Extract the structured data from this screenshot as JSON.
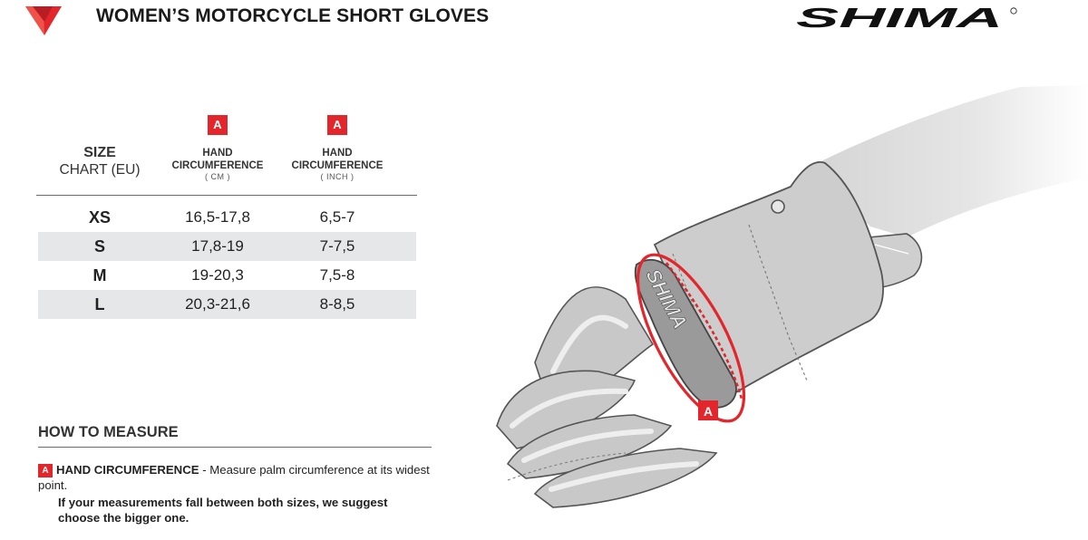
{
  "header": {
    "title": "WOMEN’S MOTORCYCLE SHORT GLOVES",
    "brand": "SHIMA",
    "brand_accent": "#e3262b"
  },
  "size_chart": {
    "size_label_line1": "SIZE",
    "size_label_line2": "CHART (EU)",
    "columns": [
      {
        "badge": "A",
        "name_line1": "HAND",
        "name_line2": "CIRCUMFERENCE",
        "unit": "( CM )"
      },
      {
        "badge": "A",
        "name_line1": "HAND",
        "name_line2": "CIRCUMFERENCE",
        "unit": "( INCH )"
      }
    ],
    "rows": [
      {
        "size": "XS",
        "cm": "16,5-17,8",
        "inch": "6,5-7"
      },
      {
        "size": "S",
        "cm": "17,8-19",
        "inch": "7-7,5"
      },
      {
        "size": "M",
        "cm": "19-20,3",
        "inch": "7,5-8"
      },
      {
        "size": "L",
        "cm": "20,3-21,6",
        "inch": "8-8,5"
      }
    ]
  },
  "how_to_measure": {
    "title": "HOW TO MEASURE",
    "items": [
      {
        "badge": "A",
        "term": "HAND CIRCUMFERENCE",
        "description": " - Measure palm circumference at its widest point."
      }
    ],
    "note": "If your measurements fall between both sizes, we suggest choose the bigger one."
  },
  "illustration": {
    "badge": "A",
    "glove_brand": "SHIMA",
    "icon": "glove-on-hand-illustration"
  }
}
